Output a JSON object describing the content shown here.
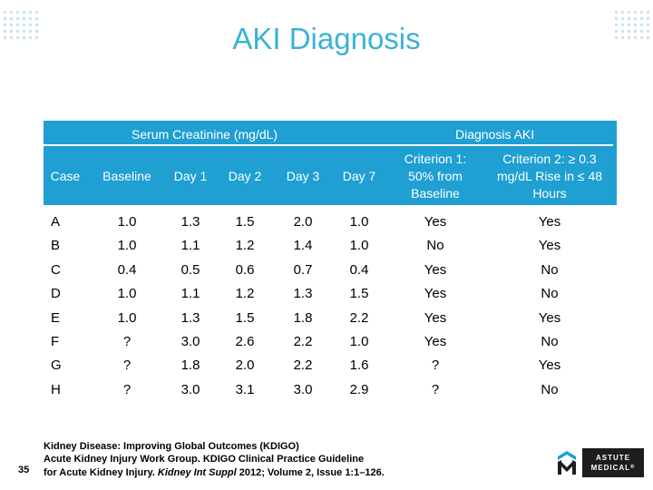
{
  "title": "AKI Diagnosis",
  "header": {
    "group_serum": "Serum Creatinine (mg/dL)",
    "group_diagnosis": "Diagnosis AKI",
    "columns": [
      "Case",
      "Baseline",
      "Day 1",
      "Day 2",
      "Day 3",
      "Day 7",
      "Criterion 1: 50% from Baseline",
      "Criterion 2: ≥ 0.3 mg/dL Rise in ≤ 48 Hours"
    ]
  },
  "rows": [
    [
      "A",
      "1.0",
      "1.3",
      "1.5",
      "2.0",
      "1.0",
      "Yes",
      "Yes"
    ],
    [
      "B",
      "1.0",
      "1.1",
      "1.2",
      "1.4",
      "1.0",
      "No",
      "Yes"
    ],
    [
      "C",
      "0.4",
      "0.5",
      "0.6",
      "0.7",
      "0.4",
      "Yes",
      "No"
    ],
    [
      "D",
      "1.0",
      "1.1",
      "1.2",
      "1.3",
      "1.5",
      "Yes",
      "No"
    ],
    [
      "E",
      "1.0",
      "1.3",
      "1.5",
      "1.8",
      "2.2",
      "Yes",
      "Yes"
    ],
    [
      "F",
      "?",
      "3.0",
      "2.6",
      "2.2",
      "1.0",
      "Yes",
      "No"
    ],
    [
      "G",
      "?",
      "1.8",
      "2.0",
      "2.2",
      "1.6",
      "?",
      "Yes"
    ],
    [
      "H",
      "?",
      "3.0",
      "3.1",
      "3.0",
      "2.9",
      "?",
      "No"
    ]
  ],
  "citation": {
    "line1": "Kidney Disease: Improving Global Outcomes (KDIGO)",
    "line2": "Acute Kidney Injury Work Group. KDIGO Clinical Practice Guideline",
    "line3_start": "for Acute Kidney Injury. ",
    "line3_journal": "Kidney Int Suppl",
    "line3_end": " 2012; Volume 2, Issue 1:1–126."
  },
  "page_number": "35",
  "logo": {
    "line1": "ASTUTE",
    "line2": "MEDICAL",
    "suffix": "®"
  },
  "colors": {
    "title": "#3cb2d6",
    "header_bg": "#1f9fd2",
    "decor_dots": "#c9e3ee",
    "logo_box": "#1d1d1b"
  }
}
